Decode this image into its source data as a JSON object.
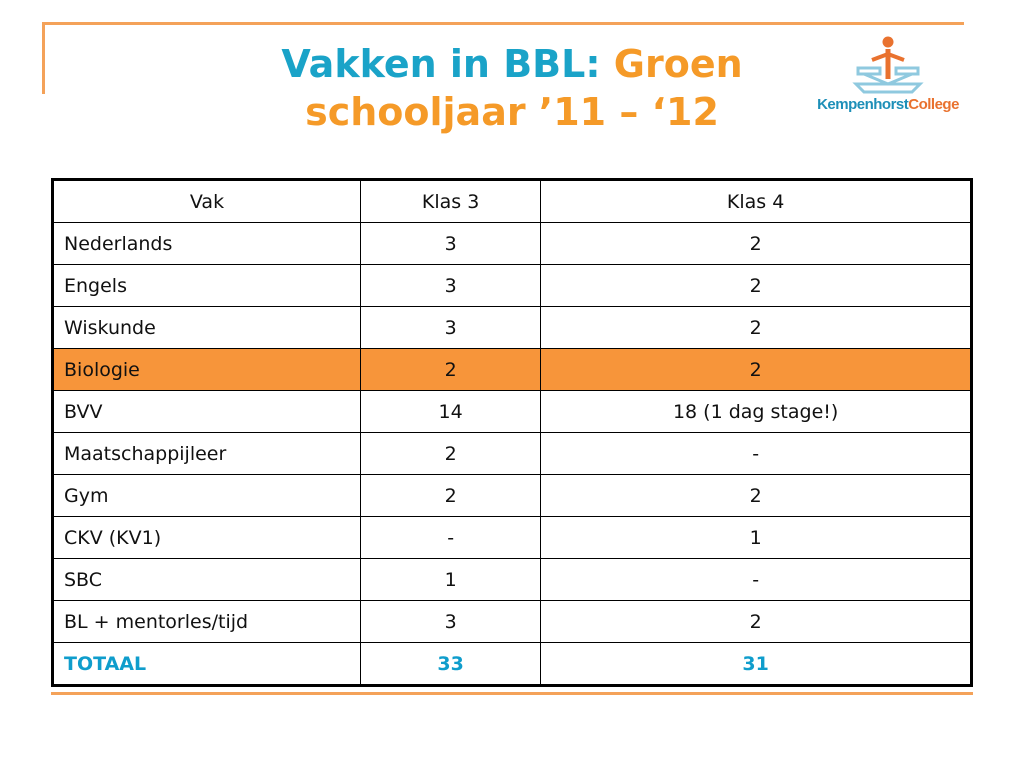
{
  "title": {
    "part1": "Vakken in BBL: ",
    "part2": "Groen",
    "line2": "schooljaar ’11 – ‘12"
  },
  "logo": {
    "text_main": "Kempenhorst",
    "text_accent": "College",
    "icon": "school-figure-icon"
  },
  "colors": {
    "title_blue": "#1aa3c8",
    "title_orange": "#f59a28",
    "highlight_row": "#f7953a",
    "total_text": "#0f9dcc",
    "frame": "#f4a259"
  },
  "table": {
    "headers": [
      "Vak",
      "Klas 3",
      "Klas 4"
    ],
    "rows": [
      [
        "Nederlands",
        "3",
        "2"
      ],
      [
        "Engels",
        "3",
        "2"
      ],
      [
        "Wiskunde",
        "3",
        "2"
      ],
      [
        "Biologie",
        "2",
        "2"
      ],
      [
        "BVV",
        "14",
        "18 (1 dag stage!)"
      ],
      [
        "Maatschappijleer",
        "2",
        "-"
      ],
      [
        "Gym",
        "2",
        "2"
      ],
      [
        "CKV (KV1)",
        "-",
        "1"
      ],
      [
        "SBC",
        "1",
        "-"
      ],
      [
        "BL + mentorles/tijd",
        "3",
        "2"
      ]
    ],
    "highlight_row_index": 3,
    "total": [
      "TOTAAL",
      "33",
      "31"
    ]
  }
}
